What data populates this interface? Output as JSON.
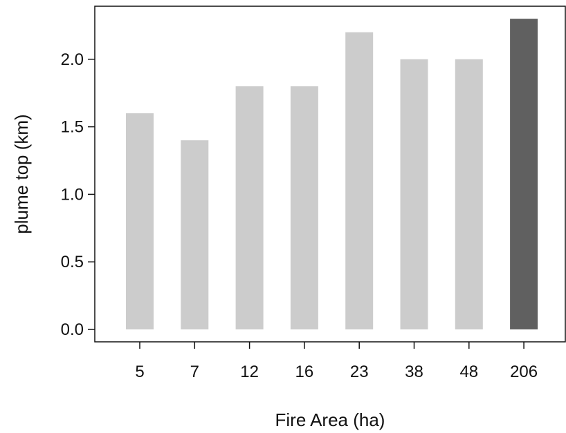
{
  "chart_data": {
    "type": "bar",
    "title": "",
    "xlabel": "Fire Area (ha)",
    "ylabel": "plume top (km)",
    "categories": [
      "5",
      "7",
      "12",
      "16",
      "23",
      "38",
      "48",
      "206"
    ],
    "values": [
      1.6,
      1.4,
      1.8,
      1.8,
      2.2,
      2.0,
      2.0,
      2.3
    ],
    "bar_colors": [
      "#cccccc",
      "#cccccc",
      "#cccccc",
      "#cccccc",
      "#cccccc",
      "#cccccc",
      "#cccccc",
      "#606060"
    ],
    "ylim": [
      0,
      2.45
    ],
    "yticks": [
      "0.0",
      "0.5",
      "1.0",
      "1.5",
      "2.0"
    ],
    "grid": false,
    "legend": "none"
  }
}
